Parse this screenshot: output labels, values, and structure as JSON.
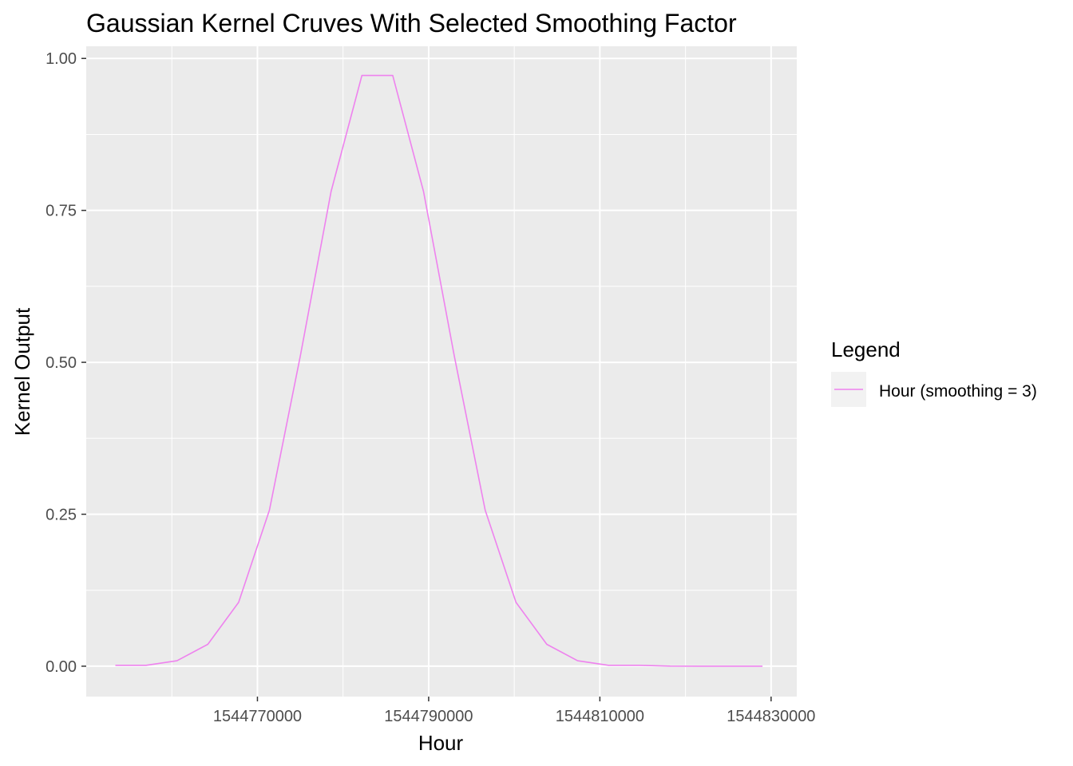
{
  "chart_data": {
    "type": "line",
    "title": "Gaussian Kernel Cruves With Selected Smoothing Factor",
    "xlabel": "Hour",
    "ylabel": "Kernel Output",
    "xlim": [
      1544750000,
      1544833000
    ],
    "ylim": [
      -0.05,
      1.02
    ],
    "x_ticks": [
      1544770000,
      1544790000,
      1544810000,
      1544830000
    ],
    "x_tick_labels": [
      "1544770000",
      "1544790000",
      "1544810000",
      "1544830000"
    ],
    "x_minor_ticks": [
      1544760000,
      1544780000,
      1544800000,
      1544820000
    ],
    "y_ticks": [
      0,
      0.25,
      0.5,
      0.75,
      1.0
    ],
    "y_tick_labels": [
      "0.00",
      "0.25",
      "0.50",
      "0.75",
      "1.00"
    ],
    "y_minor_ticks": [
      0.125,
      0.375,
      0.625,
      0.875
    ],
    "grid": true,
    "panel_background": "#ebebeb",
    "grid_color": "#ffffff",
    "legend": {
      "title": "Legend",
      "position": "right",
      "entries": [
        {
          "label": "Hour (smoothing = 3)",
          "color": "#ee82ee"
        }
      ]
    },
    "series": [
      {
        "name": "Hour (smoothing = 3)",
        "color": "#ee82ee",
        "x": [
          1544753400,
          1544757000,
          1544760600,
          1544764200,
          1544767800,
          1544771400,
          1544775000,
          1544778600,
          1544782200,
          1544785800,
          1544789400,
          1544793000,
          1544796600,
          1544800200,
          1544803800,
          1544807400,
          1544811000,
          1544814600,
          1544818200,
          1544821800,
          1544825400,
          1544829000
        ],
        "y": [
          0.0015,
          0.0015,
          0.009,
          0.036,
          0.105,
          0.257,
          0.51,
          0.781,
          0.972,
          0.972,
          0.781,
          0.51,
          0.257,
          0.105,
          0.036,
          0.009,
          0.0015,
          0.0015,
          0.0002,
          0.0,
          0.0,
          0.0
        ]
      }
    ]
  }
}
